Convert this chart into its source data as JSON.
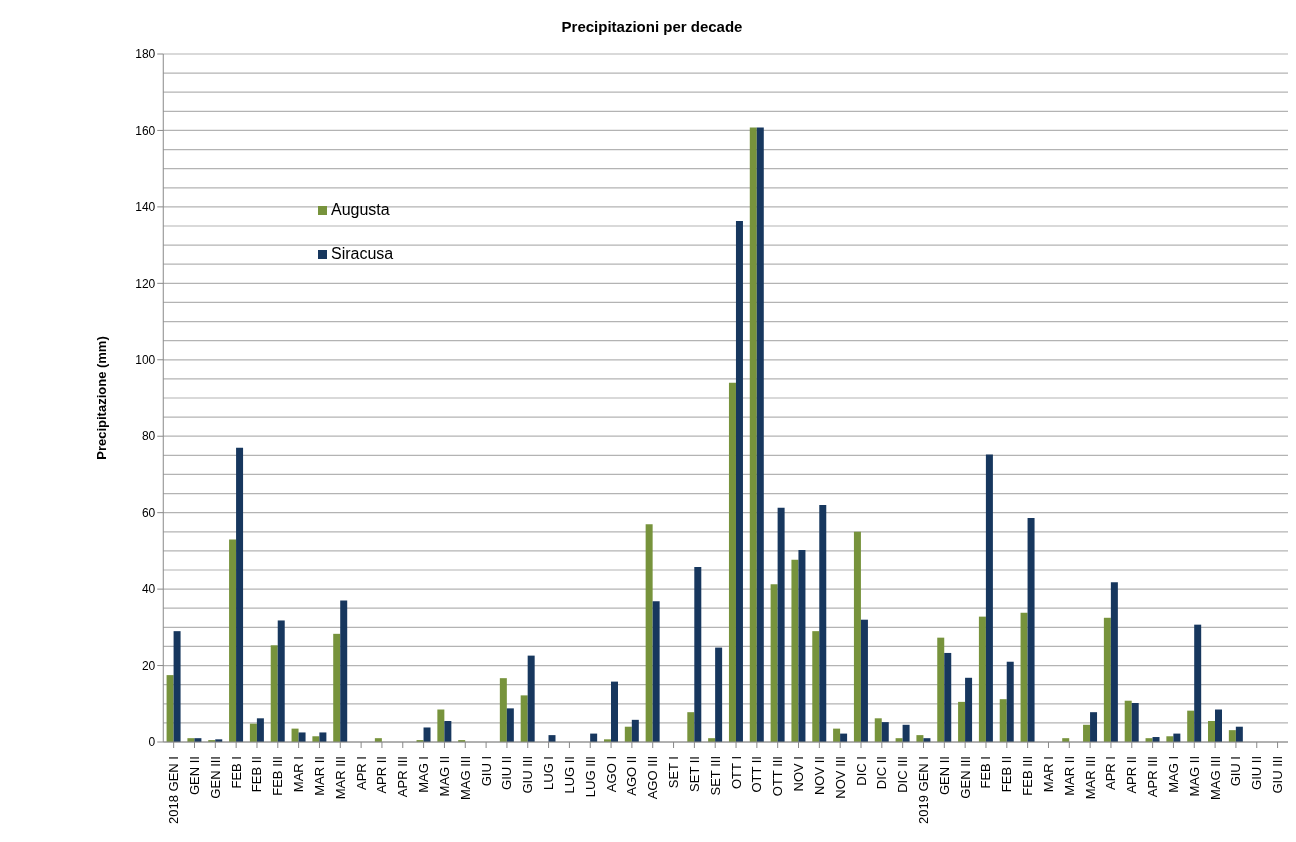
{
  "chart_data": {
    "type": "bar",
    "title": "Precipitazioni per decade",
    "ylabel": "Precipitazione (mm)",
    "categories": [
      "2018 GEN I",
      "GEN II",
      "GEN III",
      "FEB I",
      "FEB II",
      "FEB III",
      "MAR I",
      "MAR II",
      "MAR III",
      "APR I",
      "APR II",
      "APR III",
      "MAG I",
      "MAG II",
      "MAG III",
      "GIU I",
      "GIU II",
      "GIU III",
      "LUG I",
      "LUG II",
      "LUG III",
      "AGO I",
      "AGO II",
      "AGO III",
      "SET I",
      "SET II",
      "SET III",
      "OTT I",
      "OTT II",
      "OTT III",
      "NOV I",
      "NOV II",
      "NOV III",
      "DIC I",
      "DIC II",
      "DIC III",
      "2019 GEN I",
      "GEN II",
      "GEN III",
      "FEB I",
      "FEB II",
      "FEB III",
      "MAR I",
      "MAR II",
      "MAR III",
      "APR I",
      "APR II",
      "APR III",
      "MAG I",
      "MAG II",
      "MAG III",
      "GIU I",
      "GIU II",
      "GIU III"
    ],
    "series": [
      {
        "name": "Augusta",
        "color": "#77933c",
        "values": [
          17.5,
          1,
          0.5,
          53,
          4.8,
          25.3,
          3.5,
          1.5,
          28.3,
          0,
          1,
          0,
          0.5,
          8.5,
          0.5,
          0,
          16.7,
          12.2,
          0,
          0,
          0,
          0.7,
          4,
          57,
          0,
          7.8,
          1,
          94,
          160.8,
          41.3,
          47.7,
          29,
          3.5,
          55,
          6.2,
          1,
          1.8,
          27.3,
          10.5,
          32.8,
          11.2,
          33.8,
          0,
          1,
          4.5,
          32.5,
          10.8,
          1,
          1.5,
          8.2,
          5.5,
          3.1,
          0,
          0
        ]
      },
      {
        "name": "Siracusa",
        "color": "#17375e",
        "values": [
          29,
          1,
          0.7,
          77,
          6.2,
          31.8,
          2.5,
          2.5,
          37,
          0,
          0,
          0,
          3.8,
          5.5,
          0,
          0,
          8.8,
          22.6,
          1.8,
          0,
          2.2,
          15.8,
          5.8,
          36.8,
          0,
          45.8,
          24.7,
          136.3,
          160.8,
          61.3,
          50.2,
          62,
          2.2,
          32,
          5.2,
          4.5,
          1,
          23.3,
          16.8,
          75.2,
          21,
          58.6,
          0,
          0,
          7.8,
          41.8,
          10.2,
          1.3,
          2.2,
          30.7,
          8.5,
          4,
          0,
          0
        ]
      }
    ],
    "ylim": [
      0,
      180
    ],
    "yticks": [
      0,
      20,
      40,
      60,
      80,
      100,
      120,
      140,
      160,
      180
    ],
    "grid": "y",
    "legend": "top left"
  }
}
